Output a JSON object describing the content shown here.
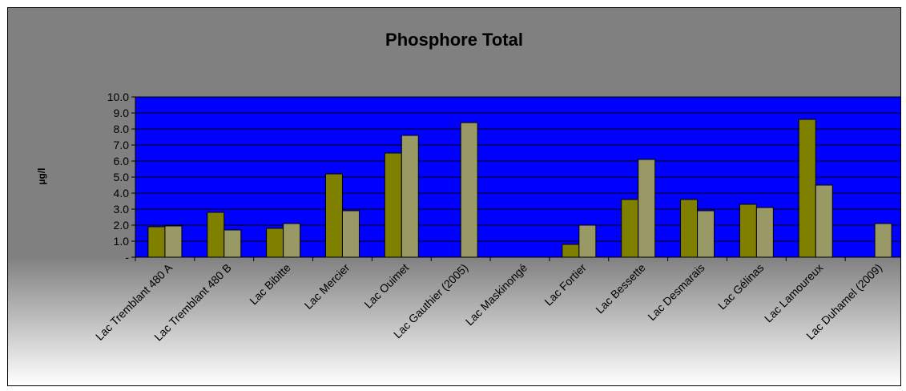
{
  "chart_data": {
    "type": "bar",
    "title": "Phosphore Total",
    "xlabel": "",
    "ylabel": "µg/l",
    "ylim": [
      0,
      10
    ],
    "yticks": [
      "-",
      "1.0",
      "2.0",
      "3.0",
      "4.0",
      "5.0",
      "6.0",
      "7.0",
      "8.0",
      "9.0",
      "10.0"
    ],
    "grid": true,
    "legend": "none",
    "categories": [
      "Lac Tremblant 480 A",
      "Lac Tremblant 480 B",
      "Lac Bibitte",
      "Lac Mercier",
      "Lac Ouimet",
      "Lac Gauthier (2005)",
      "Lac Maskinongé",
      "Lac Fortier",
      "Lac Bessette",
      "Lac Desmarais",
      "Lac Gélinas",
      "Lac Lamoureux",
      "Lac Duhamel (2009)"
    ],
    "series": [
      {
        "values": [
          1.9,
          2.8,
          1.8,
          5.2,
          6.5,
          null,
          null,
          0.8,
          3.6,
          3.6,
          3.3,
          8.6,
          null
        ]
      },
      {
        "values": [
          1.95,
          1.7,
          2.1,
          2.9,
          7.6,
          8.4,
          null,
          2.0,
          6.1,
          2.9,
          3.1,
          4.5,
          2.1
        ]
      }
    ],
    "colors": {
      "plot_background": "#0000ff",
      "gridline": "#000000",
      "series_1": "#808000",
      "series_2": "#999966"
    }
  }
}
